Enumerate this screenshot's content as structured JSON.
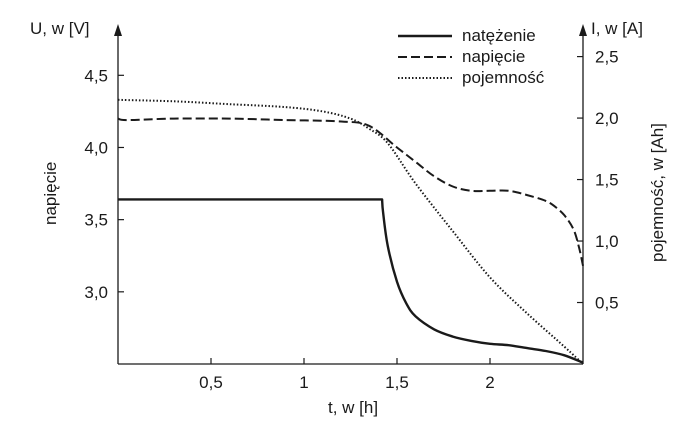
{
  "chart_data": {
    "type": "line",
    "y_left_label": "U, w [V]",
    "y_left_side_label": "napięcie",
    "y_right_label": "I, w [A]",
    "y_right_side_label": "pojemność, w [Ah]",
    "x_label": "t, w [h]",
    "x_range": [
      0,
      2.5
    ],
    "y_left_range": [
      2.5,
      4.8
    ],
    "y_right_range": [
      0,
      2.7
    ],
    "x_ticks": [
      {
        "v": 0.5,
        "label": "0,5"
      },
      {
        "v": 1,
        "label": "1"
      },
      {
        "v": 1.5,
        "label": "1,5"
      },
      {
        "v": 2,
        "label": "2"
      }
    ],
    "y_left_ticks": [
      {
        "v": 3.0,
        "label": "3,0"
      },
      {
        "v": 3.5,
        "label": "3,5"
      },
      {
        "v": 4.0,
        "label": "4,0"
      },
      {
        "v": 4.5,
        "label": "4,5"
      }
    ],
    "y_right_ticks": [
      {
        "v": 0.5,
        "label": "0,5"
      },
      {
        "v": 1.0,
        "label": "1,0"
      },
      {
        "v": 1.5,
        "label": "1,5"
      },
      {
        "v": 2.0,
        "label": "2,0"
      },
      {
        "v": 2.5,
        "label": "2,5"
      }
    ],
    "legend_position": "top-right",
    "grid": false,
    "series": [
      {
        "name": "natężenie",
        "axis": "left",
        "style": "solid",
        "x": [
          0,
          1.42,
          1.425,
          1.45,
          1.5,
          1.55,
          1.6,
          1.7,
          1.8,
          1.9,
          2.0,
          2.1,
          2.2,
          2.3,
          2.4,
          2.5
        ],
        "y": [
          3.64,
          3.64,
          3.55,
          3.32,
          3.07,
          2.92,
          2.83,
          2.74,
          2.69,
          2.66,
          2.64,
          2.63,
          2.61,
          2.59,
          2.56,
          2.51
        ]
      },
      {
        "name": "napięcie",
        "axis": "left",
        "style": "dashed",
        "x": [
          0,
          0.05,
          0.3,
          0.6,
          0.9,
          1.2,
          1.35,
          1.5,
          1.6,
          1.7,
          1.8,
          1.9,
          2.0,
          2.1,
          2.2,
          2.3,
          2.35,
          2.4,
          2.45,
          2.48,
          2.5
        ],
        "y": [
          4.2,
          4.19,
          4.2,
          4.2,
          4.19,
          4.18,
          4.15,
          4.0,
          3.9,
          3.8,
          3.73,
          3.7,
          3.7,
          3.7,
          3.67,
          3.63,
          3.59,
          3.53,
          3.43,
          3.3,
          3.18
        ]
      },
      {
        "name": "pojemność",
        "axis": "left",
        "style": "dotted",
        "x": [
          0,
          0.3,
          0.6,
          0.9,
          1.1,
          1.25,
          1.35,
          1.45,
          1.6,
          1.8,
          2.0,
          2.2,
          2.4,
          2.5
        ],
        "y": [
          4.33,
          4.32,
          4.3,
          4.28,
          4.25,
          4.2,
          4.13,
          4.03,
          3.75,
          3.42,
          3.1,
          2.85,
          2.62,
          2.5
        ]
      }
    ]
  }
}
